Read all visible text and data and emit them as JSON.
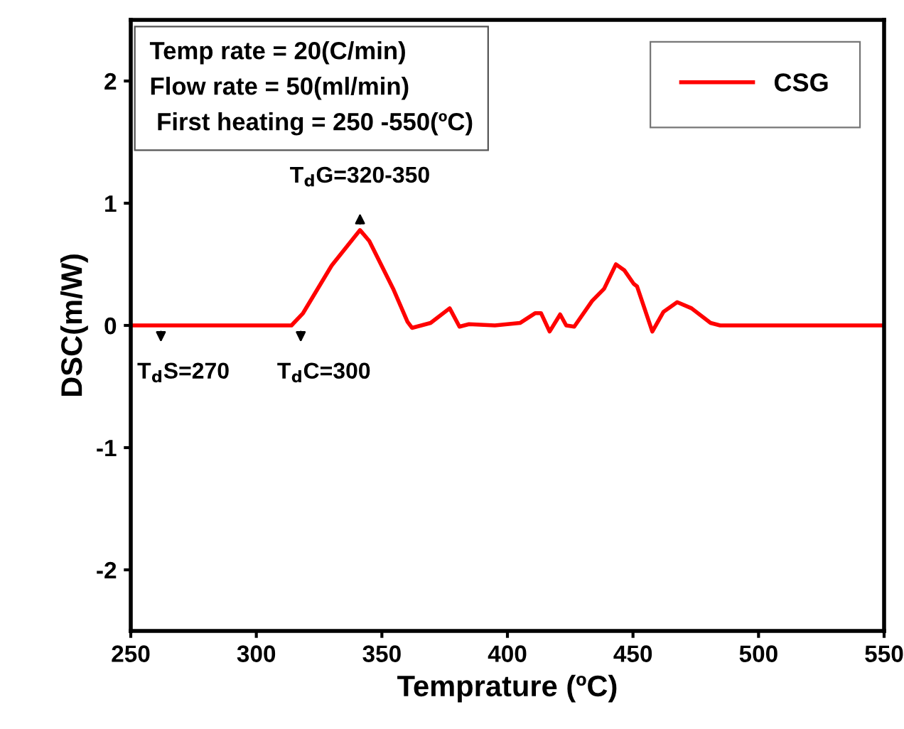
{
  "chart_data": {
    "type": "line",
    "xlabel": "Temprature (ºC)",
    "ylabel": "DSC(m/W)",
    "x": [
      250,
      270,
      290,
      305,
      314,
      318.6,
      330,
      341.3,
      345,
      354.5,
      360.2,
      362,
      369.4,
      377,
      380.9,
      384.7,
      395,
      405,
      411,
      413.4,
      416.8,
      421,
      423.4,
      426.6,
      433.7,
      438.5,
      443.2,
      446.6,
      450.3,
      451.6,
      457.7,
      462.1,
      467.6,
      473.3,
      480.9,
      484.7,
      500,
      520,
      550
    ],
    "series": [
      {
        "name": "CSG",
        "color": "#ff0000",
        "values": [
          0,
          0,
          0,
          0,
          0,
          0.1,
          0.49,
          0.78,
          0.69,
          0.3,
          0.03,
          -0.02,
          0.02,
          0.14,
          -0.01,
          0.01,
          0,
          0.02,
          0.1,
          0.1,
          -0.05,
          0.09,
          0,
          -0.01,
          0.2,
          0.3,
          0.5,
          0.45,
          0.34,
          0.32,
          -0.05,
          0.11,
          0.19,
          0.14,
          0.02,
          0,
          0,
          0,
          0
        ]
      }
    ],
    "xlim": [
      250,
      550
    ],
    "xticks": [
      250,
      300,
      350,
      400,
      450,
      500,
      550
    ],
    "ylim": [
      -2.5,
      2.5
    ],
    "yticks": [
      -2,
      -1,
      0,
      1,
      2
    ],
    "grid": false,
    "legend": "top right",
    "line_style": "solid",
    "marker": "none",
    "annotations": [
      "Temp rate = 20(C/min)",
      "Flow rate = 50(ml/min)",
      " First heating = 250 -550(ºC)",
      {
        "text": "T$_{d}$S=270",
        "x": 262,
        "y": 0
      },
      {
        "text": "T$_{d}$C=300",
        "x": 317.7,
        "y": 0
      },
      {
        "text": "T$_{d}$G=320-350",
        "x": 341.3,
        "y": 0.78
      }
    ]
  }
}
